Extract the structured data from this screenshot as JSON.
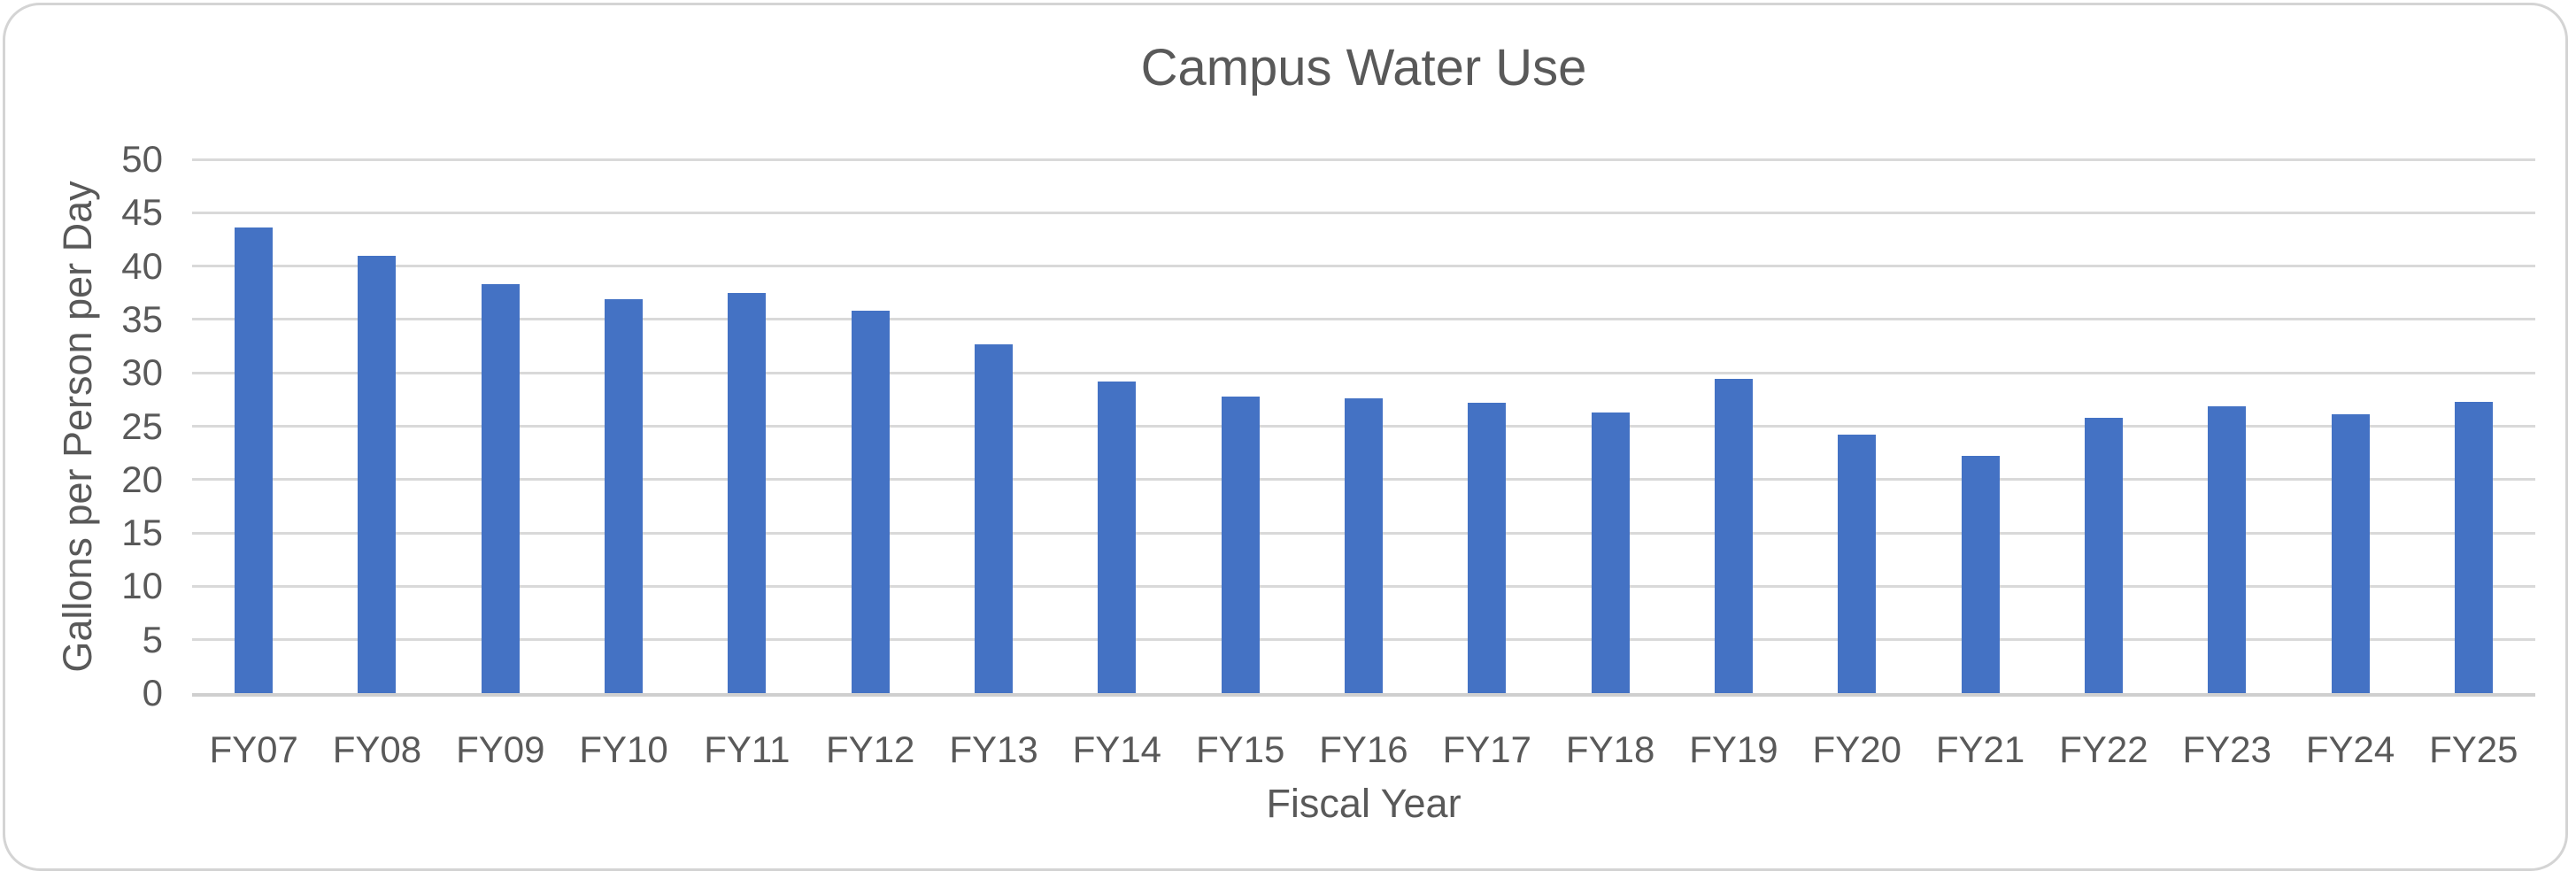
{
  "chart": {
    "title": "Campus Water Use",
    "x_axis_title": "Fiscal Year",
    "y_axis_title": "Gallons per Person per Day"
  },
  "chart_data": {
    "type": "bar",
    "title": "Campus Water Use",
    "xlabel": "Fiscal Year",
    "ylabel": "Gallons per Person per Day",
    "categories": [
      "FY07",
      "FY08",
      "FY09",
      "FY10",
      "FY11",
      "FY12",
      "FY13",
      "FY14",
      "FY15",
      "FY16",
      "FY17",
      "FY18",
      "FY19",
      "FY20",
      "FY21",
      "FY22",
      "FY23",
      "FY24",
      "FY25"
    ],
    "values": [
      43.6,
      41.0,
      38.3,
      36.9,
      37.5,
      35.8,
      32.7,
      29.2,
      27.8,
      27.6,
      27.2,
      26.3,
      29.4,
      24.2,
      22.2,
      25.8,
      26.9,
      26.1,
      27.3
    ],
    "ylim": [
      0,
      50
    ],
    "yticks": [
      0,
      5,
      10,
      15,
      20,
      25,
      30,
      35,
      40,
      45,
      50
    ],
    "grid": true,
    "legend": false,
    "colors": {
      "bar": "#4472C4",
      "text": "#595959",
      "gridline": "#D9D9D9",
      "axis_line": "#CFCFCF",
      "card_border": "#D4D4D4",
      "background": "#FFFFFF"
    }
  }
}
